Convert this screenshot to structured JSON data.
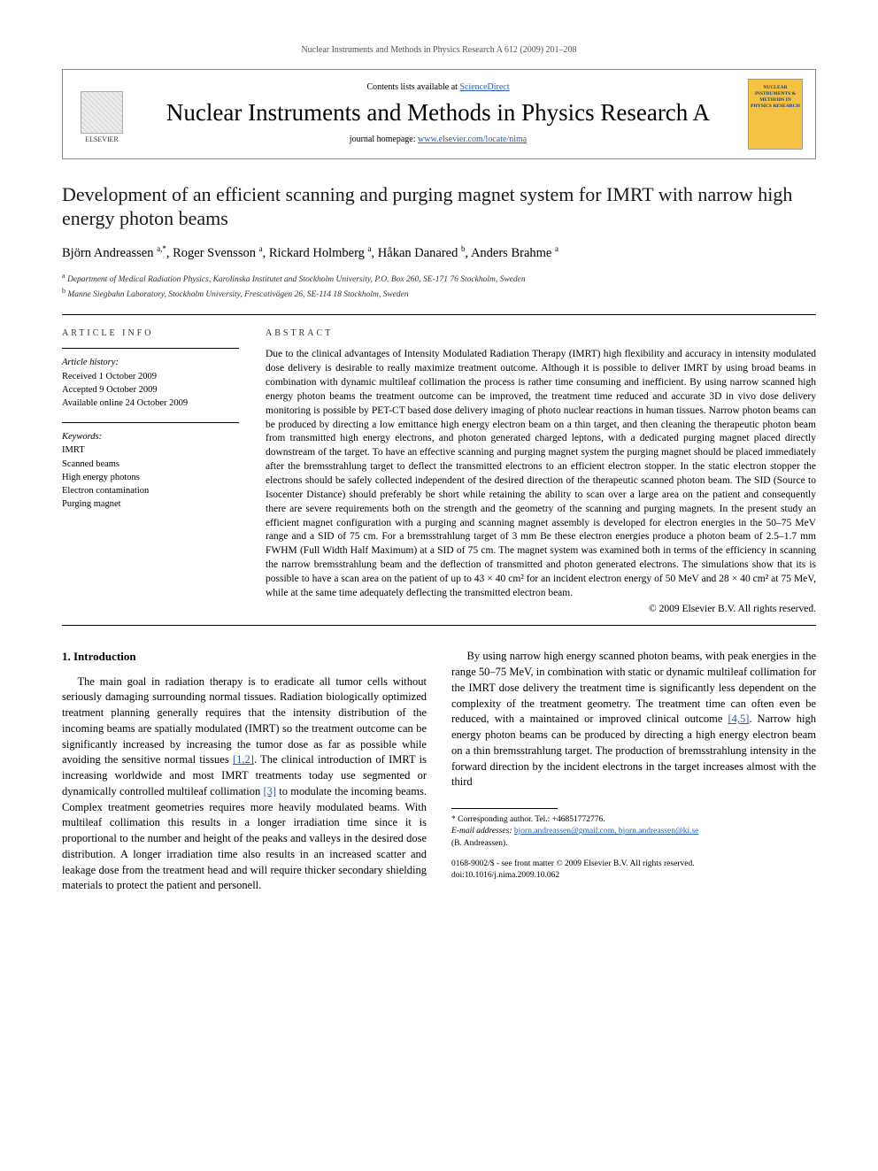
{
  "running_head": "Nuclear Instruments and Methods in Physics Research A 612 (2009) 201–208",
  "header": {
    "contents_prefix": "Contents lists available at ",
    "contents_link": "ScienceDirect",
    "journal_name": "Nuclear Instruments and Methods in Physics Research A",
    "homepage_prefix": "journal homepage: ",
    "homepage_url": "www.elsevier.com/locate/nima",
    "elsevier_label": "ELSEVIER",
    "cover_text": "NUCLEAR INSTRUMENTS & METHODS IN PHYSICS RESEARCH"
  },
  "title": "Development of an efficient scanning and purging magnet system for IMRT with narrow high energy photon beams",
  "authors_html": "Björn Andreassen <sup>a,*</sup>, Roger Svensson <sup>a</sup>, Rickard Holmberg <sup>a</sup>, Håkan Danared <sup>b</sup>, Anders Brahme <sup>a</sup>",
  "affiliations": [
    {
      "sup": "a",
      "text": "Department of Medical Radiation Physics, Karolinska Institutet and Stockholm University, P.O. Box 260, SE-171 76 Stockholm, Sweden"
    },
    {
      "sup": "b",
      "text": "Manne Siegbahn Laboratory, Stockholm University, Frescativägen 26, SE-114 18 Stockholm, Sweden"
    }
  ],
  "article_info": {
    "label": "ARTICLE INFO",
    "history_label": "Article history:",
    "history": [
      "Received 1 October 2009",
      "Accepted 9 October 2009",
      "Available online 24 October 2009"
    ],
    "keywords_label": "Keywords:",
    "keywords": [
      "IMRT",
      "Scanned beams",
      "High energy photons",
      "Electron contamination",
      "Purging magnet"
    ]
  },
  "abstract": {
    "label": "ABSTRACT",
    "text": "Due to the clinical advantages of Intensity Modulated Radiation Therapy (IMRT) high flexibility and accuracy in intensity modulated dose delivery is desirable to really maximize treatment outcome. Although it is possible to deliver IMRT by using broad beams in combination with dynamic multileaf collimation the process is rather time consuming and inefficient. By using narrow scanned high energy photon beams the treatment outcome can be improved, the treatment time reduced and accurate 3D in vivo dose delivery monitoring is possible by PET-CT based dose delivery imaging of photo nuclear reactions in human tissues. Narrow photon beams can be produced by directing a low emittance high energy electron beam on a thin target, and then cleaning the therapeutic photon beam from transmitted high energy electrons, and photon generated charged leptons, with a dedicated purging magnet placed directly downstream of the target. To have an effective scanning and purging magnet system the purging magnet should be placed immediately after the bremsstrahlung target to deflect the transmitted electrons to an efficient electron stopper. In the static electron stopper the electrons should be safely collected independent of the desired direction of the therapeutic scanned photon beam. The SID (Source to Isocenter Distance) should preferably be short while retaining the ability to scan over a large area on the patient and consequently there are severe requirements both on the strength and the geometry of the scanning and purging magnets. In the present study an efficient magnet configuration with a purging and scanning magnet assembly is developed for electron energies in the 50–75 MeV range and a SID of 75 cm. For a bremsstrahlung target of 3 mm Be these electron energies produce a photon beam of 2.5–1.7 mm FWHM (Full Width Half Maximum) at a SID of 75 cm. The magnet system was examined both in terms of the efficiency in scanning the narrow bremsstrahlung beam and the deflection of transmitted and photon generated electrons. The simulations show that its is possible to have a scan area on the patient of up to 43 × 40 cm² for an incident electron energy of 50 MeV and 28 × 40 cm² at 75 MeV, while at the same time adequately deflecting the transmitted electron beam.",
    "copyright": "© 2009 Elsevier B.V. All rights reserved."
  },
  "body": {
    "section_heading": "1. Introduction",
    "p1": "The main goal in radiation therapy is to eradicate all tumor cells without seriously damaging surrounding normal tissues. Radiation biologically optimized treatment planning generally requires that the intensity distribution of the incoming beams are spatially modulated (IMRT) so the treatment outcome can be significantly increased by increasing the tumor dose as far as possible while avoiding the sensitive normal tissues ",
    "ref12": "[1,2]",
    "p1b": ". The clinical introduction of IMRT is increasing worldwide and most IMRT treatments today use segmented or dynamically controlled multileaf collimation ",
    "ref3": "[3]",
    "p1c": " to modulate the incoming beams. Complex treatment geometries requires more heavily modulated beams. With multileaf collimation this results in a longer irradiation time since it is proportional to the number and height of the peaks and valleys in the desired dose distribution. A longer irradiation time also results in an increased scatter and leakage dose from the treatment head and will require thicker secondary shielding materials to protect the patient and personell.",
    "p2": "By using narrow high energy scanned photon beams, with peak energies in the range 50–75 MeV, in combination with static or dynamic multileaf collimation for the IMRT dose delivery the treatment time is significantly less dependent on the complexity of the treatment geometry. The treatment time can often even be reduced, with a maintained or improved clinical outcome ",
    "ref45": "[4,5]",
    "p2b": ". Narrow high energy photon beams can be produced by directing a high energy electron beam on a thin bremsstrahlung target. The production of bremsstrahlung intensity in the forward direction by the incident electrons in the target increases almost with the third"
  },
  "footnotes": {
    "corr_label": "* Corresponding author. Tel.: +46851772776.",
    "email_label": "E-mail addresses:",
    "emails": "bjorn.andreassen@gmail.com, bjorn.andreassen@ki.se",
    "email_person": "(B. Andreassen).",
    "front_matter": "0168-9002/$ - see front matter © 2009 Elsevier B.V. All rights reserved.",
    "doi": "doi:10.1016/j.nima.2009.10.062"
  },
  "colors": {
    "link": "#2a5db0",
    "cover_bg": "#f6c243",
    "cover_text": "#1a3a6e"
  }
}
